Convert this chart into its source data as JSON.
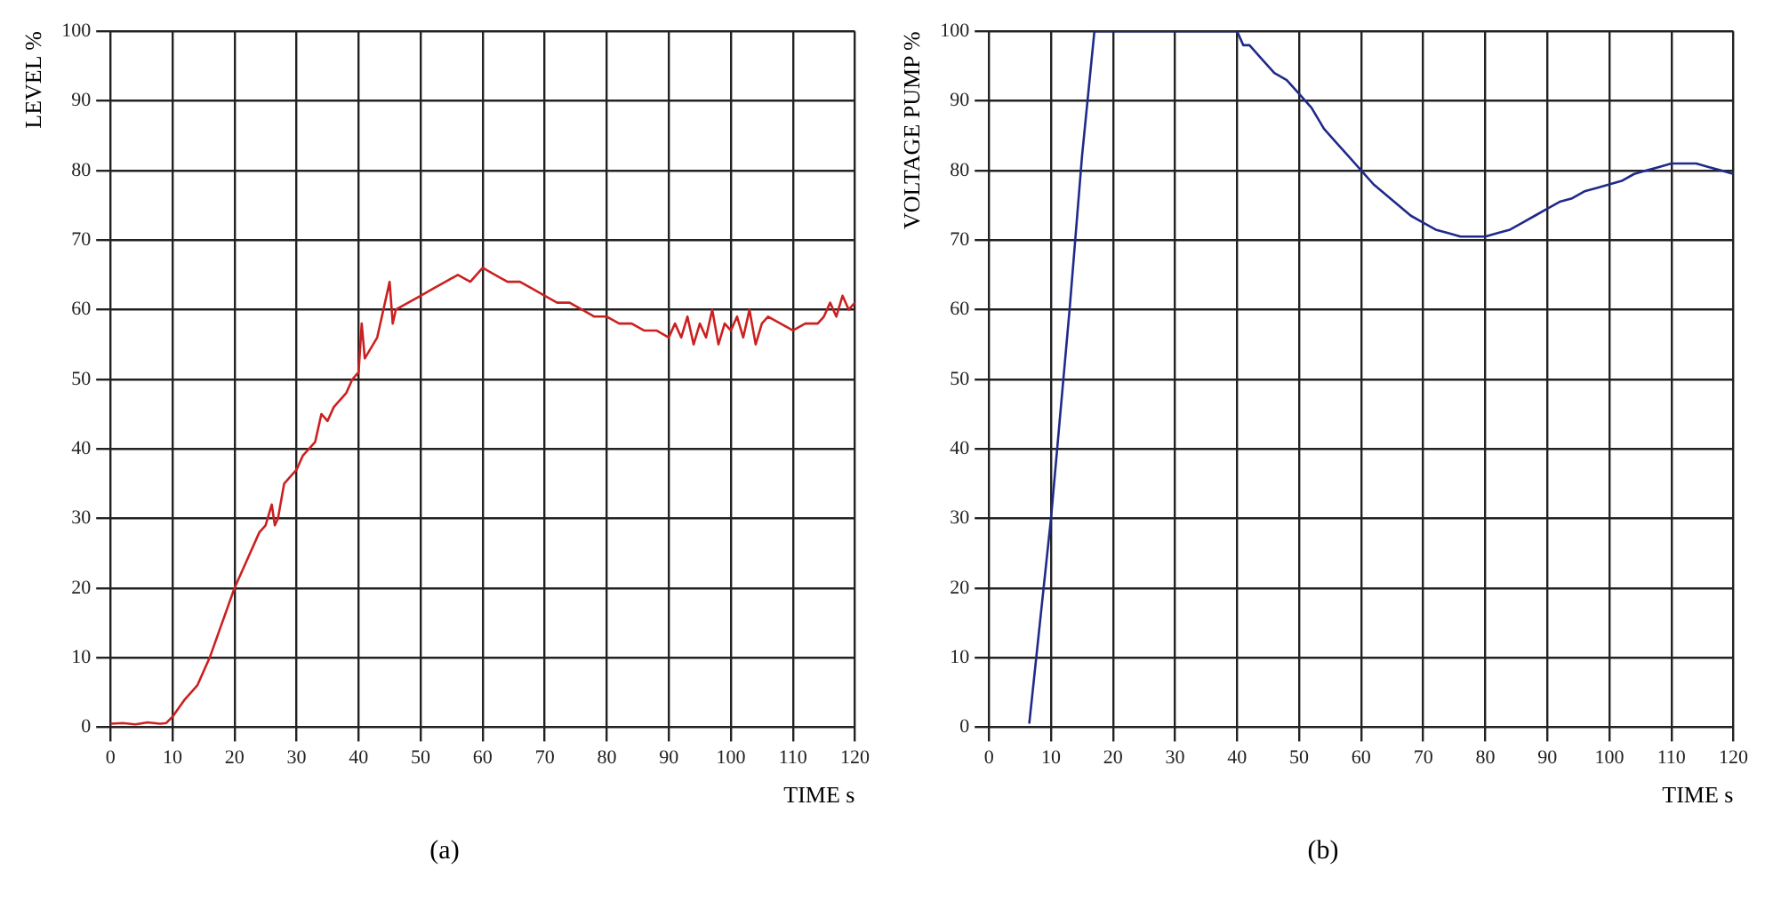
{
  "chart_data": [
    {
      "type": "line",
      "title": "(a)",
      "xlabel": "TIME s",
      "ylabel": "LEVEL %",
      "xlim": [
        0,
        120
      ],
      "ylim": [
        0,
        100
      ],
      "xticks": [
        0,
        10,
        20,
        30,
        40,
        50,
        60,
        70,
        80,
        90,
        100,
        110,
        120
      ],
      "yticks": [
        0,
        10,
        20,
        30,
        40,
        50,
        60,
        70,
        80,
        90,
        100
      ],
      "grid": true,
      "marker": "none",
      "line_style": "solid",
      "x": [
        0,
        2,
        4,
        6,
        8,
        9,
        10,
        12,
        14,
        16,
        18,
        20,
        22,
        24,
        25,
        26,
        26.5,
        27,
        28,
        29,
        30,
        31,
        32,
        33,
        34,
        35,
        36,
        38,
        39,
        40,
        40.5,
        41,
        43,
        45,
        45.5,
        46,
        48,
        50,
        52,
        54,
        56,
        58,
        60,
        62,
        64,
        66,
        68,
        70,
        72,
        74,
        76,
        78,
        80,
        82,
        84,
        86,
        88,
        90,
        91,
        92,
        93,
        94,
        95,
        96,
        97,
        98,
        99,
        100,
        101,
        102,
        103,
        104,
        105,
        106,
        108,
        110,
        112,
        114,
        115,
        116,
        117,
        118,
        119,
        120
      ],
      "series": [
        {
          "color": "#cc2020",
          "values": [
            0.5,
            0.6,
            0.4,
            0.7,
            0.5,
            0.6,
            1.5,
            4,
            6,
            10,
            15,
            20,
            24,
            28,
            29,
            32,
            29,
            30,
            35,
            36,
            37,
            39,
            40,
            41,
            45,
            44,
            46,
            48,
            50,
            51,
            58,
            53,
            56,
            64,
            58,
            60,
            61,
            62,
            63,
            64,
            65,
            64,
            66,
            65,
            64,
            64,
            63,
            62,
            61,
            61,
            60,
            59,
            59,
            58,
            58,
            57,
            57,
            56,
            58,
            56,
            59,
            55,
            58,
            56,
            60,
            55,
            58,
            57,
            59,
            56,
            60,
            55,
            58,
            59,
            58,
            57,
            58,
            58,
            59,
            61,
            59,
            62,
            60,
            61
          ]
        }
      ]
    },
    {
      "type": "line",
      "title": "(b)",
      "xlabel": "TIME s",
      "ylabel": "VOLTAGE PUMP %",
      "xlim": [
        0,
        120
      ],
      "ylim": [
        0,
        100
      ],
      "xticks": [
        0,
        10,
        20,
        30,
        40,
        50,
        60,
        70,
        80,
        90,
        100,
        110,
        120
      ],
      "yticks": [
        0,
        10,
        20,
        30,
        40,
        50,
        60,
        70,
        80,
        90,
        100
      ],
      "grid": true,
      "marker": "none",
      "line_style": "solid",
      "x": [
        6.5,
        10,
        13,
        15,
        17,
        20,
        25,
        30,
        35,
        40,
        41,
        42,
        44,
        46,
        48,
        50,
        52,
        54,
        56,
        58,
        60,
        62,
        64,
        66,
        68,
        70,
        72,
        74,
        76,
        78,
        80,
        82,
        84,
        86,
        88,
        90,
        92,
        94,
        96,
        98,
        100,
        102,
        104,
        106,
        108,
        110,
        112,
        114,
        116,
        118,
        120
      ],
      "series": [
        {
          "color": "#1f2a8a",
          "values": [
            0.5,
            30,
            60,
            82,
            100,
            100,
            100,
            100,
            100,
            100,
            98,
            98,
            96,
            94,
            93,
            91,
            89,
            86,
            84,
            82,
            80,
            78,
            76.5,
            75,
            73.5,
            72.5,
            71.5,
            71,
            70.5,
            70.5,
            70.5,
            71,
            71.5,
            72.5,
            73.5,
            74.5,
            75.5,
            76,
            77,
            77.5,
            78,
            78.5,
            79.5,
            80,
            80.5,
            81,
            81,
            81,
            80.5,
            80,
            79.5
          ]
        }
      ]
    }
  ]
}
